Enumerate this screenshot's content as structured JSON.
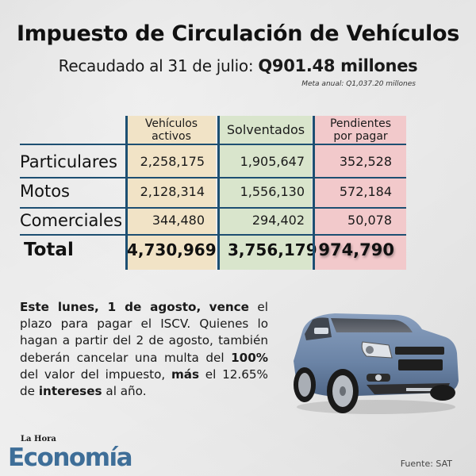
{
  "header": {
    "title": "Impuesto de Circulación de Vehículos",
    "subtitle_prefix": "Recaudado al 31 de julio: ",
    "subtitle_value": "Q901.48 millones",
    "meta_note": "Meta anual: Q1,037.20 millones"
  },
  "table": {
    "columns": [
      {
        "label_line1": "Vehículos",
        "label_line2": "activos",
        "color": "#f1e3c6"
      },
      {
        "label_line1": "Solventados",
        "label_line2": "",
        "color": "#d9e5cc"
      },
      {
        "label_line1": "Pendientes",
        "label_line2": "por pagar",
        "color": "#f2c9cb"
      }
    ],
    "rows": [
      {
        "label": "Particulares",
        "values": [
          "2,258,175",
          "1,905,647",
          "352,528"
        ]
      },
      {
        "label": "Motos",
        "values": [
          "2,128,314",
          "1,556,130",
          "572,184"
        ]
      },
      {
        "label": "Comerciales",
        "values": [
          "344,480",
          "294,402",
          "50,078"
        ]
      }
    ],
    "total": {
      "label": "Total",
      "values": [
        "4,730,969",
        "3,756,179",
        "974,790"
      ]
    },
    "line_color": "#1d4f72"
  },
  "paragraph": {
    "b1": "Este lunes, 1 de agosto,",
    "t1": " ",
    "b2": "vence",
    "t2": " el plazo para pagar el ISCV. Quienes lo hagan a partir del 2 de agosto, también deberán cancelar una multa del ",
    "b3": "100%",
    "t3": " del valor del impuesto, ",
    "b4": "más",
    "t4": " el 12.65% de ",
    "b5": "intereses",
    "t5": " al año."
  },
  "footer": {
    "logo_small": "La Hora",
    "logo_main": "Economía",
    "source": "Fuente: SAT",
    "logo_color": "#3e6e98"
  },
  "image": {
    "icon": "suv-car-icon",
    "color": "#6d86a8"
  }
}
